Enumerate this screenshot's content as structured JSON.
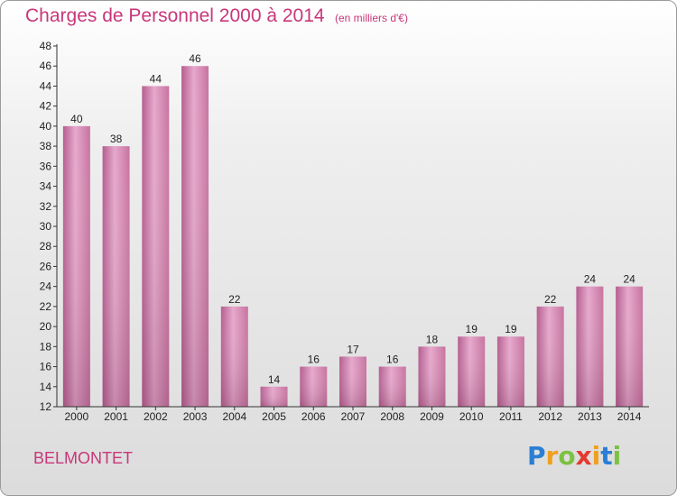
{
  "chart_data": {
    "type": "bar",
    "title": "Charges de Personnel 2000 à 2014",
    "subtitle": "(en milliers d'€)",
    "categories": [
      "2000",
      "2001",
      "2002",
      "2003",
      "2004",
      "2005",
      "2006",
      "2007",
      "2008",
      "2009",
      "2010",
      "2011",
      "2012",
      "2013",
      "2014"
    ],
    "values": [
      40,
      38,
      44,
      46,
      22,
      14,
      16,
      17,
      16,
      18,
      19,
      19,
      22,
      24,
      24
    ],
    "ylim": [
      12,
      48
    ],
    "yticks": [
      12,
      14,
      16,
      18,
      20,
      22,
      24,
      26,
      28,
      30,
      32,
      34,
      36,
      38,
      40,
      42,
      44,
      46,
      48
    ],
    "grid": false,
    "bar_color": "#c76a9c"
  },
  "location": "BELMONTET",
  "logo": {
    "letters": [
      "P",
      "r",
      "o",
      "x",
      "i",
      "t",
      "i"
    ],
    "colors": [
      "#2a7fd4",
      "#f0a020",
      "#7cc242",
      "#e23b2e",
      "#f0a020",
      "#2a7fd4",
      "#7cc242"
    ]
  },
  "colors": {
    "accent": "#c8377a"
  }
}
